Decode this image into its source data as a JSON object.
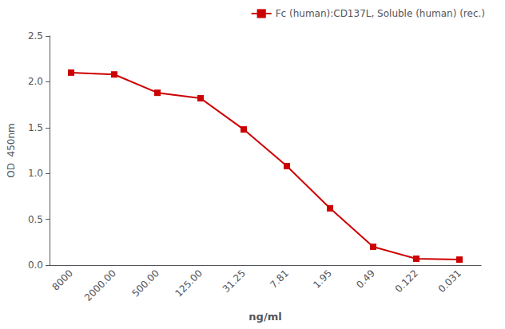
{
  "chart_data": {
    "type": "line",
    "categories": [
      "8000",
      "2000.00",
      "500.00",
      "125.00",
      "31.25",
      "7.81",
      "1.95",
      "0.49",
      "0.122",
      "0.031"
    ],
    "series": [
      {
        "name": "Fc (human):CD137L, Soluble (human) (rec.)",
        "color": "#CC0000",
        "marker": "square",
        "values": [
          2.1,
          2.08,
          1.88,
          1.82,
          1.48,
          1.08,
          0.62,
          0.2,
          0.07,
          0.06
        ]
      }
    ],
    "xlabel": "ng/ml",
    "ylabel": "OD  450nm",
    "ylim": [
      0.0,
      2.5
    ],
    "yticks": [
      {
        "value": 0.0,
        "label": "0.0"
      },
      0.5,
      {
        "value": 1.0,
        "label": "1.0"
      },
      1.5,
      {
        "value": 2.0,
        "label": "2.0"
      },
      2.5
    ],
    "grid": false,
    "legend": "upper right"
  }
}
